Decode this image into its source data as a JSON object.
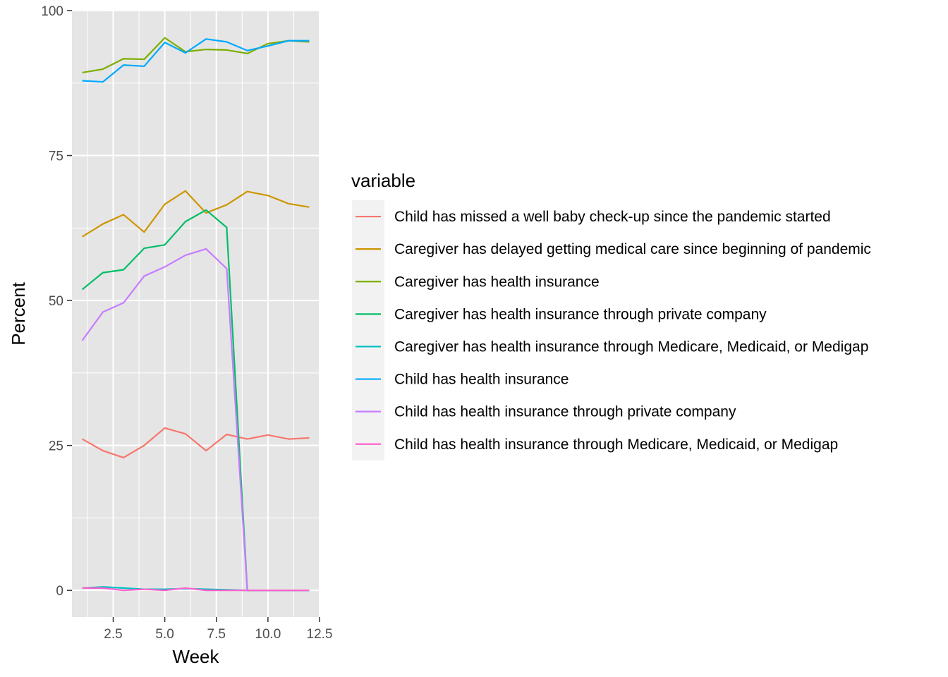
{
  "chart_data": {
    "type": "line",
    "xlabel": "Week",
    "ylabel": "Percent",
    "xlim": [
      0.5,
      12.5
    ],
    "ylim": [
      -4.6,
      100
    ],
    "x_ticks": [
      2.5,
      5.0,
      7.5,
      10.0,
      12.5
    ],
    "x_tick_labels": [
      "2.5",
      "5.0",
      "7.5",
      "10.0",
      "12.5"
    ],
    "y_ticks": [
      0,
      25,
      50,
      75,
      100
    ],
    "y_tick_labels": [
      "0",
      "25",
      "50",
      "75",
      "100"
    ],
    "grid": true,
    "legend": {
      "title": "variable",
      "position": "right"
    },
    "x": [
      1,
      2,
      3,
      4,
      5,
      6,
      7,
      8,
      9,
      10,
      11,
      12
    ],
    "series": [
      {
        "name": "Child has missed a well baby check-up since the pandemic started",
        "color": "#F8766D",
        "values": [
          26.1,
          24.1,
          22.9,
          25.0,
          28.0,
          27.0,
          24.1,
          26.9,
          26.1,
          26.8,
          26.1,
          26.3
        ]
      },
      {
        "name": "Caregiver has delayed getting medical care since beginning of pandemic",
        "color": "#CD9600",
        "values": [
          61.0,
          63.2,
          64.8,
          61.8,
          66.6,
          68.9,
          65.1,
          66.5,
          68.8,
          68.1,
          66.7,
          66.1
        ]
      },
      {
        "name": "Caregiver has health insurance",
        "color": "#7CAE00",
        "values": [
          89.3,
          89.9,
          91.7,
          91.6,
          95.3,
          92.9,
          93.3,
          93.2,
          92.6,
          94.3,
          94.8,
          94.6
        ]
      },
      {
        "name": "Caregiver has health insurance through private company",
        "color": "#00BE67",
        "values": [
          51.9,
          54.8,
          55.3,
          59.0,
          59.6,
          63.6,
          65.6,
          62.6,
          0.0,
          0.0,
          0.0,
          0.0
        ]
      },
      {
        "name": "Caregiver has health insurance through Medicare, Medicaid, or Medigap",
        "color": "#00BFC4",
        "values": [
          0.4,
          0.6,
          0.4,
          0.2,
          0.2,
          0.3,
          0.2,
          0.1,
          0.0,
          0.0,
          0.0,
          0.0
        ]
      },
      {
        "name": "Child has health insurance",
        "color": "#00A9FF",
        "values": [
          87.9,
          87.7,
          90.6,
          90.4,
          94.5,
          92.7,
          95.1,
          94.6,
          93.1,
          93.9,
          94.8,
          94.8
        ]
      },
      {
        "name": "Child has health insurance through private company",
        "color": "#C77CFF",
        "values": [
          43.1,
          48.0,
          49.6,
          54.2,
          55.8,
          57.8,
          58.9,
          55.5,
          0.0,
          0.0,
          0.0,
          0.0
        ]
      },
      {
        "name": "Child has health insurance through Medicare, Medicaid, or Medigap",
        "color": "#FF61CC",
        "values": [
          0.4,
          0.4,
          0.0,
          0.2,
          0.0,
          0.4,
          0.0,
          0.0,
          0.0,
          0.0,
          0.0,
          0.0
        ]
      }
    ]
  },
  "style": {
    "panel_background": "#E5E5E5",
    "grid_major": "#FFFFFF",
    "tick_label_color": "#4D4D4D",
    "legend_key_background": "#F2F2F2"
  }
}
